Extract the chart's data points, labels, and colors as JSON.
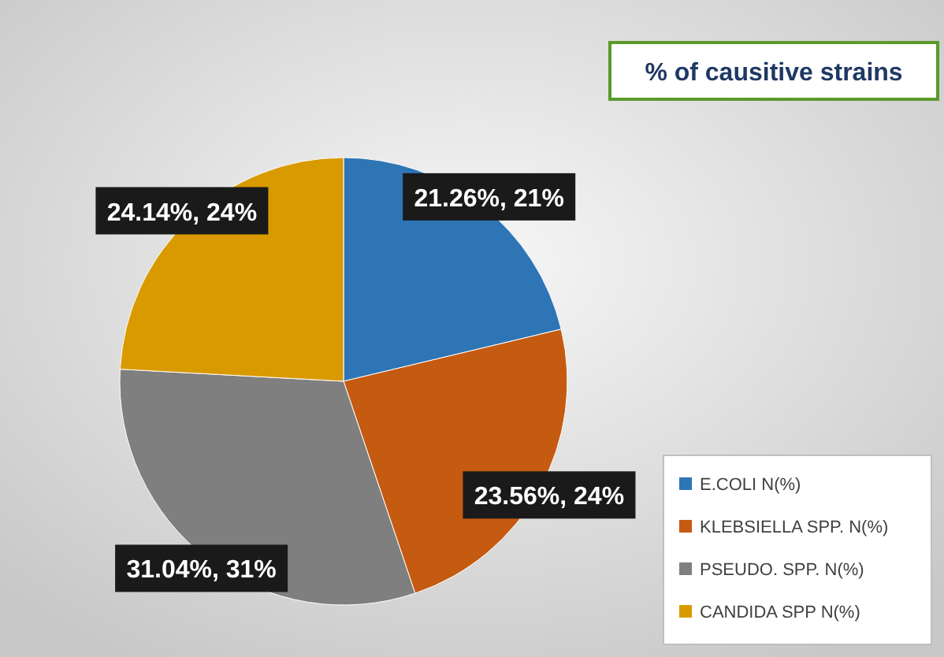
{
  "chart_data": {
    "type": "pie",
    "title": "% of causitive strains",
    "categories": [
      "E.COLI N(%)",
      "KLEBSIELLA SPP. N(%)",
      "PSEUDO. SPP. N(%)",
      "CANDIDA SPP N(%)"
    ],
    "values": [
      21.26,
      23.56,
      31.04,
      24.14
    ],
    "colors": [
      "#2e75b6",
      "#c55a11",
      "#7f7f7f",
      "#d99a00"
    ],
    "value_labels": [
      "21.26%, 21%",
      "23.56%, 24%",
      "31.04%, 31%",
      "24.14%, 24%"
    ],
    "legend": "bottom right"
  }
}
